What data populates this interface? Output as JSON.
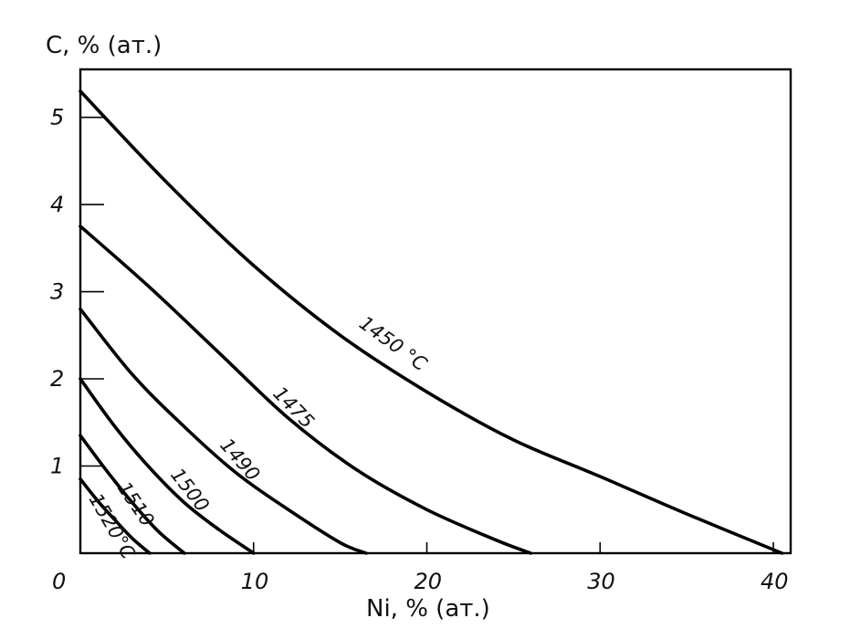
{
  "chart_data": {
    "type": "line",
    "title": "",
    "xlabel": "Ni, % (ат.)",
    "ylabel": "C, % (ат.)",
    "xlim": [
      0,
      41
    ],
    "ylim": [
      0,
      5.55
    ],
    "origin_label": "0",
    "x_ticks": [
      10,
      20,
      30,
      40
    ],
    "x_tick_labels": [
      "10",
      "20",
      "30",
      "40"
    ],
    "y_ticks": [
      1,
      2,
      3,
      4,
      5
    ],
    "y_tick_labels": [
      "1",
      "2",
      "3",
      "4",
      "5"
    ],
    "grid": false,
    "series": [
      {
        "name": "1450 °C",
        "x": [
          0,
          5,
          10,
          15,
          20,
          25,
          30,
          35,
          40.5
        ],
        "y": [
          5.3,
          4.25,
          3.3,
          2.5,
          1.85,
          1.3,
          0.88,
          0.45,
          0.0
        ]
      },
      {
        "name": "1475",
        "x": [
          0,
          4,
          8,
          12,
          16,
          20,
          24,
          26
        ],
        "y": [
          3.75,
          3.05,
          2.3,
          1.55,
          0.95,
          0.5,
          0.15,
          0.0
        ]
      },
      {
        "name": "1490",
        "x": [
          0,
          3,
          6,
          9,
          12,
          15,
          16.5
        ],
        "y": [
          2.8,
          2.05,
          1.45,
          0.92,
          0.5,
          0.12,
          0.0
        ]
      },
      {
        "name": "1500",
        "x": [
          0,
          2,
          4,
          6,
          8,
          10
        ],
        "y": [
          2.0,
          1.45,
          0.98,
          0.58,
          0.27,
          0.0
        ]
      },
      {
        "name": "1510",
        "x": [
          0,
          1.5,
          3,
          4.5,
          6
        ],
        "y": [
          1.35,
          0.95,
          0.58,
          0.25,
          0.0
        ]
      },
      {
        "name": "1520°C",
        "x": [
          0,
          1,
          2,
          3,
          4
        ],
        "y": [
          0.85,
          0.6,
          0.38,
          0.17,
          0.0
        ]
      }
    ]
  }
}
